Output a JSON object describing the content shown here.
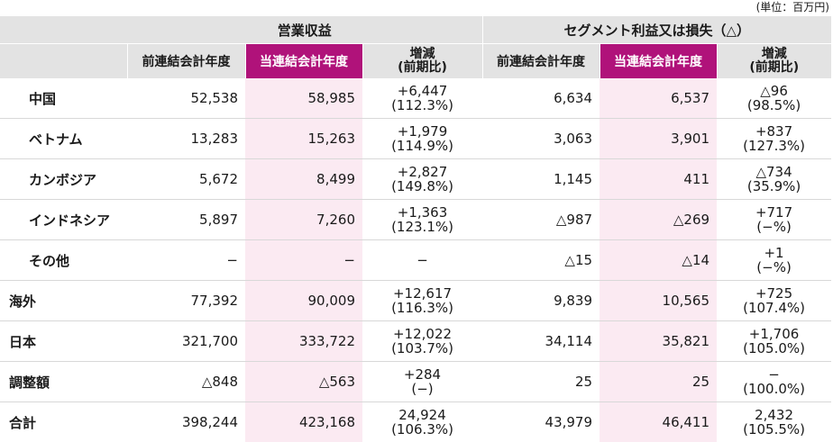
{
  "unit_label": "(単位：百万円)",
  "header": {
    "group1": "営業収益",
    "group2": "セグメント利益又は損失（△）",
    "prev": "前連結会計年度",
    "curr": "当連結会計年度",
    "diff_line1": "増減",
    "diff_line2": "(前期比)"
  },
  "rows": [
    {
      "label": "中国",
      "rev_prev": "52,538",
      "rev_curr": "58,985",
      "rev_diff": "+6,447",
      "rev_ratio": "(112.3%)",
      "seg_prev": "6,634",
      "seg_curr": "6,537",
      "seg_diff": "△96",
      "seg_ratio": "(98.5%)"
    },
    {
      "label": "ベトナム",
      "rev_prev": "13,283",
      "rev_curr": "15,263",
      "rev_diff": "+1,979",
      "rev_ratio": "(114.9%)",
      "seg_prev": "3,063",
      "seg_curr": "3,901",
      "seg_diff": "+837",
      "seg_ratio": "(127.3%)"
    },
    {
      "label": "カンボジア",
      "rev_prev": "5,672",
      "rev_curr": "8,499",
      "rev_diff": "+2,827",
      "rev_ratio": "(149.8%)",
      "seg_prev": "1,145",
      "seg_curr": "411",
      "seg_diff": "△734",
      "seg_ratio": "(35.9%)"
    },
    {
      "label": "インドネシア",
      "rev_prev": "5,897",
      "rev_curr": "7,260",
      "rev_diff": "+1,363",
      "rev_ratio": "(123.1%)",
      "seg_prev": "△987",
      "seg_curr": "△269",
      "seg_diff": "+717",
      "seg_ratio": "(−%)"
    },
    {
      "label": "その他",
      "rev_prev": "−",
      "rev_curr": "−",
      "rev_diff": "−",
      "rev_ratio": "",
      "seg_prev": "△15",
      "seg_curr": "△14",
      "seg_diff": "+1",
      "seg_ratio": "(−%)"
    },
    {
      "label": "海外",
      "rev_prev": "77,392",
      "rev_curr": "90,009",
      "rev_diff": "+12,617",
      "rev_ratio": "(116.3%)",
      "seg_prev": "9,839",
      "seg_curr": "10,565",
      "seg_diff": "+725",
      "seg_ratio": "(107.4%)"
    },
    {
      "label": "日本",
      "rev_prev": "321,700",
      "rev_curr": "333,722",
      "rev_diff": "+12,022",
      "rev_ratio": "(103.7%)",
      "seg_prev": "34,114",
      "seg_curr": "35,821",
      "seg_diff": "+1,706",
      "seg_ratio": "(105.0%)"
    },
    {
      "label": "調整額",
      "rev_prev": "△848",
      "rev_curr": "△563",
      "rev_diff": "+284",
      "rev_ratio": "(−)",
      "seg_prev": "25",
      "seg_curr": "25",
      "seg_diff": "−",
      "seg_ratio": "(100.0%)"
    },
    {
      "label": "合計",
      "rev_prev": "398,244",
      "rev_curr": "423,168",
      "rev_diff": "24,924",
      "rev_ratio": "(106.3%)",
      "seg_prev": "43,979",
      "seg_curr": "46,411",
      "seg_diff": "2,432",
      "seg_ratio": "(105.5%)"
    }
  ]
}
